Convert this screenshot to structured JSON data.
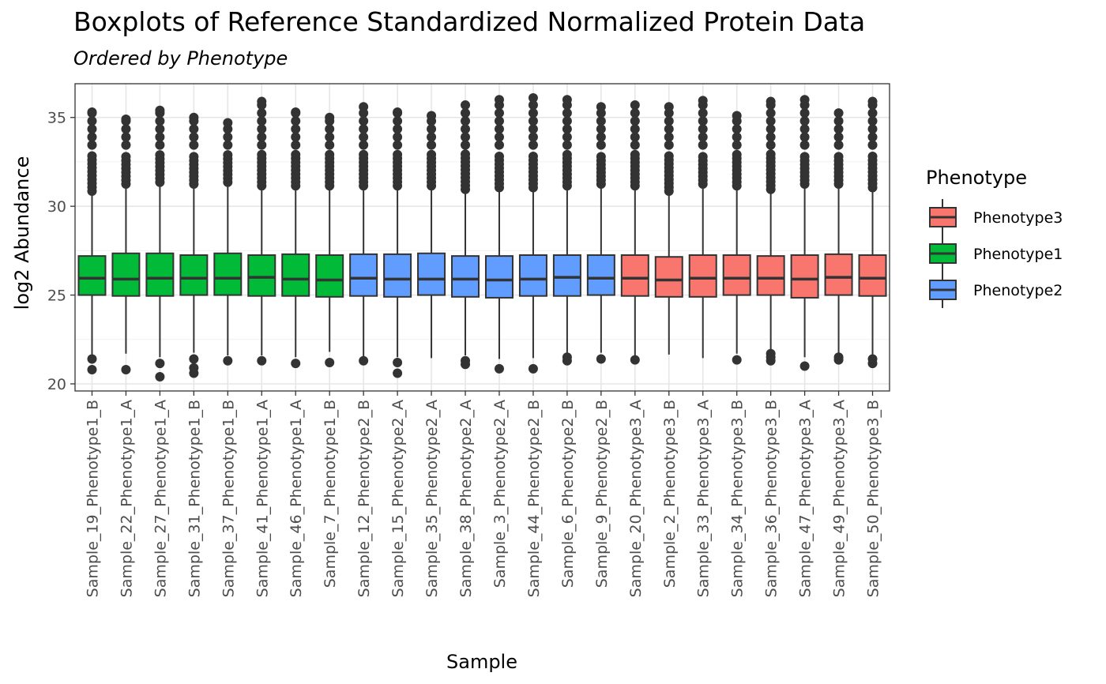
{
  "chart_data": {
    "type": "boxplot",
    "title": "Boxplots of Reference Standardized Normalized Protein Data",
    "subtitle": "Ordered by  Phenotype",
    "xlabel": "Sample",
    "ylabel": "log2 Abundance",
    "ylim": [
      19.6,
      36.9
    ],
    "yticks": [
      20,
      25,
      30,
      35
    ],
    "grid": true,
    "legend": {
      "title": "Phenotype",
      "position": "right",
      "entries": [
        {
          "label": "Phenotype3",
          "color": "#F8766D"
        },
        {
          "label": "Phenotype1",
          "color": "#00BA38"
        },
        {
          "label": "Phenotype2",
          "color": "#619CFF"
        }
      ]
    },
    "categories": [
      "Sample_19_Phenotype1_B",
      "Sample_22_Phenotype1_A",
      "Sample_27_Phenotype1_A",
      "Sample_31_Phenotype1_B",
      "Sample_37_Phenotype1_B",
      "Sample_41_Phenotype1_A",
      "Sample_46_Phenotype1_A",
      "Sample_7_Phenotype1_B",
      "Sample_12_Phenotype2_B",
      "Sample_15_Phenotype2_A",
      "Sample_35_Phenotype2_A",
      "Sample_38_Phenotype2_A",
      "Sample_3_Phenotype2_A",
      "Sample_44_Phenotype2_B",
      "Sample_6_Phenotype2_B",
      "Sample_9_Phenotype2_B",
      "Sample_20_Phenotype3_A",
      "Sample_2_Phenotype3_B",
      "Sample_33_Phenotype3_A",
      "Sample_34_Phenotype3_B",
      "Sample_36_Phenotype3_B",
      "Sample_47_Phenotype3_A",
      "Sample_49_Phenotype3_A",
      "Sample_50_Phenotype3_B"
    ],
    "boxes": [
      {
        "phenotype": "Phenotype1",
        "q1": 25.0,
        "median": 25.95,
        "q3": 27.2,
        "whisker_low": 21.65,
        "whisker_high": 30.6,
        "outliers_low": [
          21.4,
          20.8
        ],
        "outliers_high": [
          35.3
        ]
      },
      {
        "phenotype": "Phenotype1",
        "q1": 24.95,
        "median": 25.9,
        "q3": 27.35,
        "whisker_low": 21.7,
        "whisker_high": 31.0,
        "outliers_low": [
          20.8
        ],
        "outliers_high": [
          34.9
        ]
      },
      {
        "phenotype": "Phenotype1",
        "q1": 24.95,
        "median": 25.95,
        "q3": 27.35,
        "whisker_low": 21.5,
        "whisker_high": 31.1,
        "outliers_low": [
          21.15,
          20.4
        ],
        "outliers_high": [
          35.4
        ]
      },
      {
        "phenotype": "Phenotype1",
        "q1": 25.0,
        "median": 25.95,
        "q3": 27.25,
        "whisker_low": 21.75,
        "whisker_high": 31.0,
        "outliers_low": [
          21.4,
          20.9,
          20.6
        ],
        "outliers_high": [
          35.0
        ]
      },
      {
        "phenotype": "Phenotype1",
        "q1": 25.0,
        "median": 25.95,
        "q3": 27.35,
        "whisker_low": 21.6,
        "whisker_high": 31.1,
        "outliers_low": [
          21.3
        ],
        "outliers_high": [
          34.7
        ]
      },
      {
        "phenotype": "Phenotype1",
        "q1": 24.95,
        "median": 26.0,
        "q3": 27.25,
        "whisker_low": 21.6,
        "whisker_high": 30.9,
        "outliers_low": [
          21.3
        ],
        "outliers_high": [
          35.9
        ]
      },
      {
        "phenotype": "Phenotype1",
        "q1": 24.95,
        "median": 25.9,
        "q3": 27.3,
        "whisker_low": 21.5,
        "whisker_high": 30.9,
        "outliers_low": [
          21.15
        ],
        "outliers_high": [
          35.3
        ]
      },
      {
        "phenotype": "Phenotype1",
        "q1": 24.9,
        "median": 25.85,
        "q3": 27.25,
        "whisker_low": 21.8,
        "whisker_high": 30.9,
        "outliers_low": [
          21.2
        ],
        "outliers_high": [
          35.0
        ]
      },
      {
        "phenotype": "Phenotype2",
        "q1": 24.95,
        "median": 25.95,
        "q3": 27.3,
        "whisker_low": 21.5,
        "whisker_high": 30.9,
        "outliers_low": [
          21.3
        ],
        "outliers_high": [
          35.6
        ]
      },
      {
        "phenotype": "Phenotype2",
        "q1": 24.9,
        "median": 25.9,
        "q3": 27.3,
        "whisker_low": 21.5,
        "whisker_high": 30.9,
        "outliers_low": [
          21.2,
          20.6
        ],
        "outliers_high": [
          35.3
        ]
      },
      {
        "phenotype": "Phenotype2",
        "q1": 25.0,
        "median": 25.9,
        "q3": 27.35,
        "whisker_low": 21.45,
        "whisker_high": 30.9,
        "outliers_low": [],
        "outliers_high": [
          35.1
        ]
      },
      {
        "phenotype": "Phenotype2",
        "q1": 24.9,
        "median": 25.9,
        "q3": 27.2,
        "whisker_low": 21.6,
        "whisker_high": 30.7,
        "outliers_low": [
          21.3,
          21.1
        ],
        "outliers_high": [
          35.7
        ]
      },
      {
        "phenotype": "Phenotype2",
        "q1": 24.85,
        "median": 25.85,
        "q3": 27.2,
        "whisker_low": 21.4,
        "whisker_high": 30.8,
        "outliers_low": [
          20.85
        ],
        "outliers_high": [
          36.0
        ]
      },
      {
        "phenotype": "Phenotype2",
        "q1": 24.95,
        "median": 25.9,
        "q3": 27.25,
        "whisker_low": 21.45,
        "whisker_high": 30.8,
        "outliers_low": [
          20.85
        ],
        "outliers_high": [
          36.1
        ]
      },
      {
        "phenotype": "Phenotype2",
        "q1": 24.95,
        "median": 26.0,
        "q3": 27.25,
        "whisker_low": 21.7,
        "whisker_high": 30.9,
        "outliers_low": [
          21.5,
          21.3
        ],
        "outliers_high": [
          36.0
        ]
      },
      {
        "phenotype": "Phenotype2",
        "q1": 25.0,
        "median": 25.95,
        "q3": 27.25,
        "whisker_low": 21.75,
        "whisker_high": 31.0,
        "outliers_low": [
          21.4
        ],
        "outliers_high": [
          35.6
        ]
      },
      {
        "phenotype": "Phenotype3",
        "q1": 24.95,
        "median": 25.95,
        "q3": 27.25,
        "whisker_low": 21.6,
        "whisker_high": 30.9,
        "outliers_low": [
          21.35
        ],
        "outliers_high": [
          35.7
        ]
      },
      {
        "phenotype": "Phenotype3",
        "q1": 24.9,
        "median": 25.85,
        "q3": 27.15,
        "whisker_low": 21.65,
        "whisker_high": 30.6,
        "outliers_low": [],
        "outliers_high": [
          35.6
        ]
      },
      {
        "phenotype": "Phenotype3",
        "q1": 24.9,
        "median": 25.95,
        "q3": 27.25,
        "whisker_low": 21.45,
        "whisker_high": 31.0,
        "outliers_low": [],
        "outliers_high": [
          35.95
        ]
      },
      {
        "phenotype": "Phenotype3",
        "q1": 25.0,
        "median": 25.95,
        "q3": 27.25,
        "whisker_low": 21.7,
        "whisker_high": 30.9,
        "outliers_low": [
          21.35
        ],
        "outliers_high": [
          35.1
        ]
      },
      {
        "phenotype": "Phenotype3",
        "q1": 25.0,
        "median": 25.95,
        "q3": 27.2,
        "whisker_low": 21.8,
        "whisker_high": 30.7,
        "outliers_low": [
          21.7,
          21.5,
          21.3
        ],
        "outliers_high": [
          35.9
        ]
      },
      {
        "phenotype": "Phenotype3",
        "q1": 24.85,
        "median": 25.9,
        "q3": 27.25,
        "whisker_low": 21.5,
        "whisker_high": 31.0,
        "outliers_low": [
          21.0
        ],
        "outliers_high": [
          36.0
        ]
      },
      {
        "phenotype": "Phenotype3",
        "q1": 25.0,
        "median": 26.0,
        "q3": 27.3,
        "whisker_low": 21.7,
        "whisker_high": 31.0,
        "outliers_low": [
          21.5,
          21.35
        ],
        "outliers_high": [
          35.25
        ]
      },
      {
        "phenotype": "Phenotype3",
        "q1": 24.95,
        "median": 25.95,
        "q3": 27.25,
        "whisker_low": 21.6,
        "whisker_high": 30.8,
        "outliers_low": [
          21.4,
          21.15
        ],
        "outliers_high": [
          35.9
        ]
      }
    ]
  }
}
